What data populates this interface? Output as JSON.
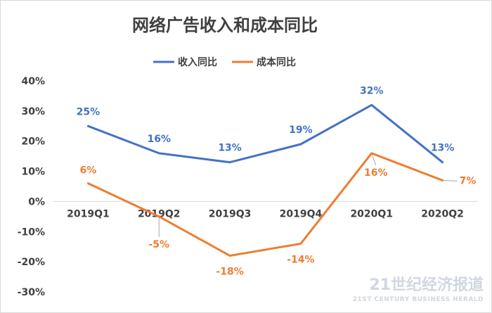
{
  "chart_data": {
    "type": "line",
    "title": "网络广告收入和成本同比",
    "categories": [
      "2019Q1",
      "2019Q2",
      "2019Q3",
      "2019Q4",
      "2020Q1",
      "2020Q2"
    ],
    "series": [
      {
        "name": "收入同比",
        "color": "#4472c4",
        "values": [
          25,
          16,
          13,
          19,
          32,
          13
        ],
        "labels": [
          "25%",
          "16%",
          "13%",
          "19%",
          "32%",
          "13%"
        ]
      },
      {
        "name": "成本同比",
        "color": "#ed7d31",
        "values": [
          6,
          -5,
          -18,
          -14,
          16,
          7
        ],
        "labels": [
          "6%",
          "-5%",
          "-18%",
          "-14%",
          "16%",
          "7%"
        ]
      }
    ],
    "ylim": [
      -30,
      40
    ],
    "yticks": [
      40,
      30,
      20,
      10,
      0,
      -10,
      -20,
      -30
    ],
    "ytick_labels": [
      "40%",
      "30%",
      "20%",
      "10%",
      "0%",
      "-10%",
      "-20%",
      "-30%"
    ],
    "xlabel": "",
    "ylabel": "",
    "grid": false,
    "legend_position": "top"
  },
  "watermark": {
    "main": "21世纪经济报道",
    "sub": "21ST CENTURY BUSINESS HERALD"
  }
}
